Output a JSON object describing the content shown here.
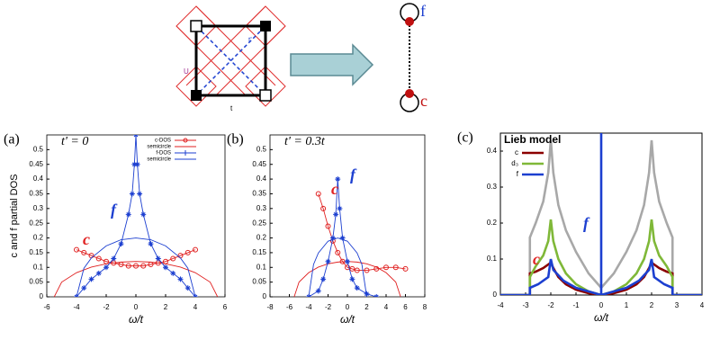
{
  "diagram": {
    "left_labels": [
      "U",
      "t'",
      "t"
    ],
    "right_labels": [
      "f",
      "c"
    ]
  },
  "chart_data": [
    {
      "type": "line",
      "label": "(a)",
      "subtitle": "t' = 0",
      "ylabel": "c and f partial DOS",
      "xlabel": "ω/t",
      "xlim": [
        -6,
        6
      ],
      "xticks": [
        -6,
        -4,
        -2,
        0,
        2,
        4,
        6
      ],
      "ylim": [
        0,
        0.55
      ],
      "yticks": [
        0,
        0.05,
        0.1,
        0.15,
        0.2,
        0.25,
        0.3,
        0.35,
        0.4,
        0.45,
        0.5
      ],
      "legend": "upper right",
      "annotations": [
        {
          "text": "f",
          "color": "#1c3fd0"
        },
        {
          "text": "c",
          "color": "#e02020"
        }
      ],
      "series": [
        {
          "name": "c-DOS",
          "color": "#e02020",
          "marker": "circle",
          "x": [
            -4,
            -3.5,
            -3,
            -2.5,
            -2,
            -1.5,
            -1,
            -0.5,
            0,
            0.5,
            1,
            1.5,
            2,
            2.5,
            3,
            3.5,
            4
          ],
          "values": [
            0.16,
            0.15,
            0.14,
            0.13,
            0.12,
            0.115,
            0.11,
            0.105,
            0.105,
            0.105,
            0.11,
            0.115,
            0.12,
            0.13,
            0.14,
            0.15,
            0.16
          ]
        },
        {
          "name": "semicircle",
          "color": "#e02020",
          "x": [
            -5.5,
            -5,
            -4,
            -3,
            -2,
            -1,
            0,
            1,
            2,
            3,
            4,
            5,
            5.5
          ],
          "values": [
            0,
            0.05,
            0.082,
            0.101,
            0.112,
            0.118,
            0.12,
            0.118,
            0.112,
            0.101,
            0.082,
            0.05,
            0
          ]
        },
        {
          "name": "f-DOS",
          "color": "#1c3fd0",
          "marker": "star",
          "x": [
            -4,
            -3.5,
            -3,
            -2.5,
            -2,
            -1.5,
            -1,
            -0.5,
            -0.25,
            -0.1,
            0,
            0.1,
            0.25,
            0.5,
            1,
            1.5,
            2,
            2.5,
            3,
            3.5,
            4
          ],
          "values": [
            0,
            0.03,
            0.06,
            0.08,
            0.1,
            0.13,
            0.18,
            0.28,
            0.35,
            0.45,
            0.55,
            0.45,
            0.35,
            0.28,
            0.18,
            0.13,
            0.1,
            0.08,
            0.06,
            0.03,
            0
          ]
        },
        {
          "name": "semicircle",
          "color": "#1c3fd0",
          "x": [
            -4,
            -3.5,
            -3,
            -2,
            -1,
            0,
            1,
            2,
            3,
            3.5,
            4
          ],
          "values": [
            0,
            0.097,
            0.132,
            0.173,
            0.194,
            0.2,
            0.194,
            0.173,
            0.132,
            0.097,
            0
          ]
        }
      ]
    },
    {
      "type": "line",
      "label": "(b)",
      "subtitle": "t' = 0.3t",
      "xlabel": "ω/t",
      "xlim": [
        -8,
        8
      ],
      "xticks": [
        -8,
        -6,
        -4,
        -2,
        0,
        2,
        4,
        6,
        8
      ],
      "ylim": [
        0,
        0.55
      ],
      "yticks": [
        0,
        0.05,
        0.1,
        0.15,
        0.2,
        0.25,
        0.3,
        0.35,
        0.4,
        0.45,
        0.5
      ],
      "annotations": [
        {
          "text": "f",
          "color": "#1c3fd0"
        },
        {
          "text": "c",
          "color": "#e02020"
        }
      ],
      "series": [
        {
          "color": "#e02020",
          "marker": "circle",
          "x": [
            -3,
            -2.5,
            -2,
            -1.5,
            -1,
            -0.5,
            0,
            0.5,
            1,
            2,
            3,
            4,
            5,
            6
          ],
          "values": [
            0.35,
            0.3,
            0.24,
            0.19,
            0.15,
            0.12,
            0.1,
            0.095,
            0.09,
            0.09,
            0.095,
            0.1,
            0.1,
            0.095
          ]
        },
        {
          "color": "#e02020",
          "x": [
            -5.5,
            -5,
            -4,
            -3,
            -2,
            -1,
            0,
            1,
            2,
            3,
            4,
            5,
            5.5
          ],
          "values": [
            0,
            0.05,
            0.082,
            0.101,
            0.112,
            0.118,
            0.12,
            0.118,
            0.112,
            0.101,
            0.082,
            0.05,
            0
          ]
        },
        {
          "color": "#1c3fd0",
          "marker": "star",
          "x": [
            -4,
            -3,
            -2.5,
            -2,
            -1.5,
            -1.2,
            -1,
            -0.8,
            -0.5,
            0,
            0.5,
            1,
            2,
            3
          ],
          "values": [
            0,
            0.02,
            0.06,
            0.12,
            0.2,
            0.28,
            0.4,
            0.3,
            0.2,
            0.12,
            0.06,
            0.03,
            0.01,
            0
          ]
        },
        {
          "color": "#1c3fd0",
          "x": [
            -4,
            -3.5,
            -3,
            -2,
            -1,
            0,
            1,
            1.5,
            2
          ],
          "values": [
            0,
            0.11,
            0.149,
            0.189,
            0.2,
            0.189,
            0.149,
            0.11,
            0
          ]
        }
      ]
    },
    {
      "type": "line",
      "label": "(c)",
      "title": "Lieb model",
      "xlabel": "ω/t",
      "xlim": [
        -4,
        4
      ],
      "xticks": [
        -4,
        -3,
        -2,
        -1,
        0,
        1,
        2,
        3,
        4
      ],
      "ylim": [
        0,
        0.45
      ],
      "yticks": [
        0,
        0.1,
        0.2,
        0.3,
        0.4
      ],
      "legend": "upper left",
      "thick": true,
      "annotations": [
        {
          "text": "f",
          "color": "#1c3fd0"
        },
        {
          "text": "c",
          "color": "#e02020"
        }
      ],
      "series": [
        {
          "color": "#a8a8a8",
          "x": [
            -4,
            -2.83,
            -2.83,
            -2.6,
            -2.3,
            -2.1,
            -2,
            -1.9,
            -1.7,
            -1.4,
            -1,
            -0.5,
            0,
            0.5,
            1,
            1.4,
            1.7,
            1.9,
            2,
            2.1,
            2.3,
            2.6,
            2.83,
            2.83,
            4
          ],
          "values": [
            0,
            0,
            0.16,
            0.2,
            0.26,
            0.34,
            0.43,
            0.34,
            0.25,
            0.18,
            0.12,
            0.06,
            0.02,
            0.06,
            0.12,
            0.18,
            0.25,
            0.34,
            0.43,
            0.34,
            0.26,
            0.2,
            0.16,
            0,
            0
          ]
        },
        {
          "name": "c",
          "color": "#8b0000",
          "x": [
            -4,
            -2.83,
            -2.83,
            -2.6,
            -2.3,
            -2.1,
            -2,
            -1.9,
            -1.7,
            -1.4,
            -1,
            -0.5,
            0,
            0.5,
            1,
            1.4,
            1.7,
            1.9,
            2,
            2.1,
            2.3,
            2.6,
            2.83,
            2.83,
            4
          ],
          "values": [
            0,
            0,
            0.06,
            0.065,
            0.075,
            0.085,
            0.09,
            0.075,
            0.05,
            0.03,
            0.015,
            0.005,
            0,
            0.005,
            0.015,
            0.03,
            0.05,
            0.075,
            0.09,
            0.085,
            0.075,
            0.065,
            0.06,
            0,
            0
          ]
        },
        {
          "name": "d₃",
          "color": "#7fb838",
          "x": [
            -4,
            -2.83,
            -2.83,
            -2.6,
            -2.3,
            -2.1,
            -2,
            -1.9,
            -1.7,
            -1.4,
            -1,
            -0.5,
            0,
            0.5,
            1,
            1.4,
            1.7,
            1.9,
            2,
            2.1,
            2.3,
            2.6,
            2.83,
            2.83,
            4
          ],
          "values": [
            0,
            0,
            0.05,
            0.08,
            0.11,
            0.15,
            0.21,
            0.15,
            0.1,
            0.06,
            0.03,
            0.01,
            0,
            0.01,
            0.03,
            0.06,
            0.1,
            0.15,
            0.21,
            0.15,
            0.11,
            0.08,
            0.05,
            0,
            0
          ]
        },
        {
          "name": "f",
          "color": "#1c3fd0",
          "x": [
            -4,
            -2.83,
            -2.83,
            -2.5,
            -2.1,
            -2,
            -1.9,
            -1.5,
            -1,
            -0.5,
            0,
            0,
            0,
            0.5,
            1,
            1.5,
            1.9,
            2,
            2.1,
            2.5,
            2.83,
            2.83,
            4
          ],
          "values": [
            0,
            0,
            0.02,
            0.03,
            0.05,
            0.1,
            0.07,
            0.04,
            0.02,
            0.01,
            0,
            0.45,
            0,
            0.01,
            0.02,
            0.04,
            0.07,
            0.1,
            0.05,
            0.03,
            0.02,
            0,
            0
          ]
        }
      ]
    }
  ]
}
